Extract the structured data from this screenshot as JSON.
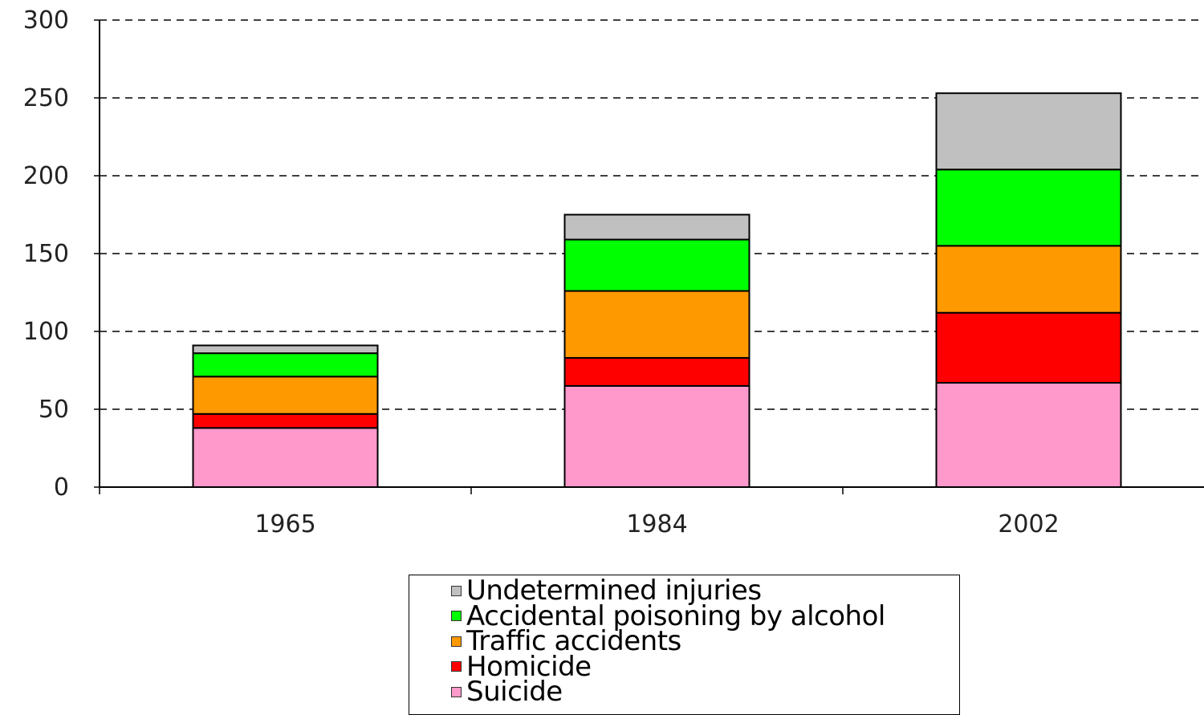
{
  "chart_data": {
    "type": "bar",
    "stacked": true,
    "categories": [
      "1965",
      "1984",
      "2002"
    ],
    "series": [
      {
        "name": "Suicide",
        "color": "#ff99cc",
        "values": [
          38,
          65,
          67
        ]
      },
      {
        "name": "Homicide",
        "color": "#ff0000",
        "values": [
          9,
          18,
          45
        ]
      },
      {
        "name": "Traffic accidents",
        "color": "#ff9900",
        "values": [
          24,
          43,
          43
        ]
      },
      {
        "name": "Accidental poisoning by alcohol",
        "color": "#00ff00",
        "values": [
          15,
          33,
          49
        ]
      },
      {
        "name": "Undetermined injuries",
        "color": "#c0c0c0",
        "values": [
          5,
          16,
          49
        ]
      }
    ],
    "ylim": [
      0,
      300
    ],
    "yticks": [
      "0",
      "50",
      "100",
      "150",
      "200",
      "250",
      "300"
    ],
    "grid": "dashed horizontal",
    "legend_position": "bottom",
    "legend_order": [
      "Undetermined injuries",
      "Accidental poisoning by alcohol",
      "Traffic accidents",
      "Homicide",
      "Suicide"
    ]
  }
}
